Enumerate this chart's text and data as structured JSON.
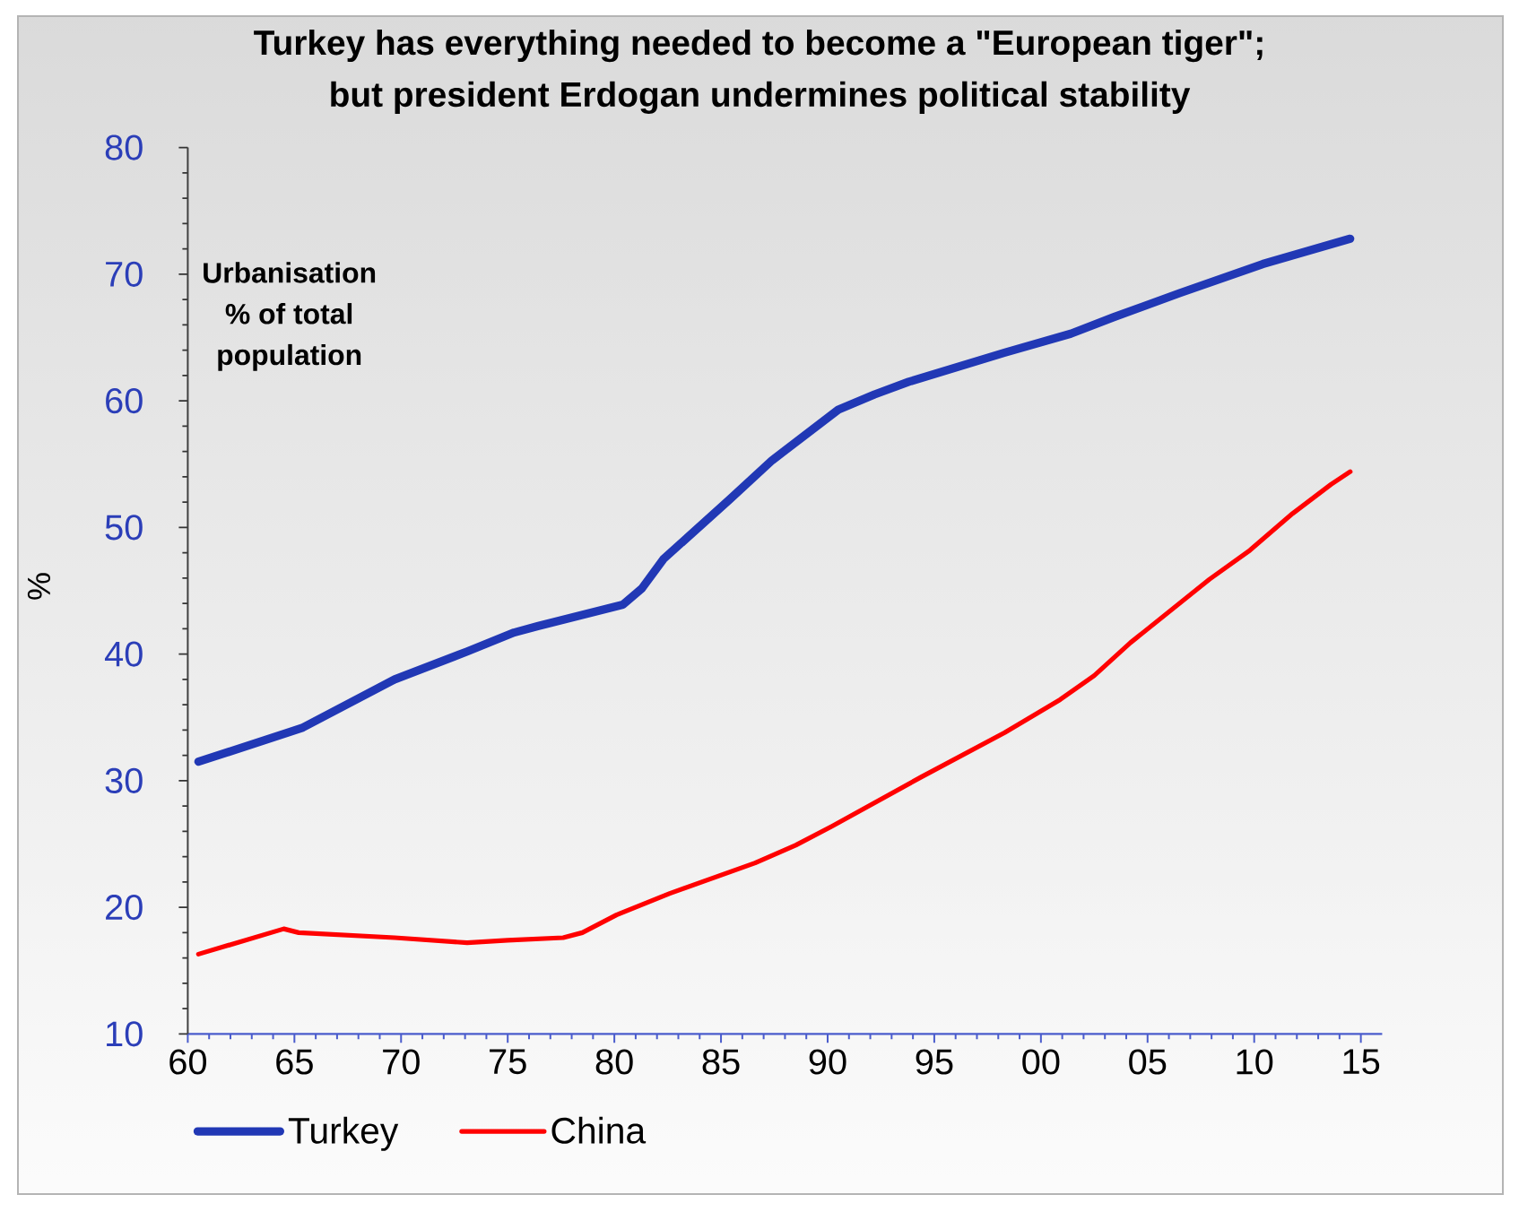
{
  "chart_data": {
    "type": "line",
    "title": "Turkey has everything needed to become a \"European tiger\"; but president Erdogan undermines political stability",
    "ylabel": "%",
    "annotations": [
      "Urbanisation % of total population"
    ],
    "xlim": [
      1960,
      2016
    ],
    "xticks": [
      {
        "value": 1960,
        "label": "60"
      },
      {
        "value": 1965,
        "label": "65"
      },
      {
        "value": 1970,
        "label": "70"
      },
      {
        "value": 1975,
        "label": "75"
      },
      {
        "value": 1980,
        "label": "80"
      },
      {
        "value": 1985,
        "label": "85"
      },
      {
        "value": 1990,
        "label": "90"
      },
      {
        "value": 1995,
        "label": "95"
      },
      {
        "value": 2000,
        "label": "00"
      },
      {
        "value": 2005,
        "label": "05"
      },
      {
        "value": 2010,
        "label": "10"
      },
      {
        "value": 2015,
        "label": "15"
      }
    ],
    "ylim": [
      10,
      80
    ],
    "yticks": [
      10,
      20,
      30,
      40,
      50,
      60,
      70,
      80
    ],
    "legend": "bottom",
    "series": [
      {
        "name": "Turkey",
        "color": "#2138b5",
        "x": [
          1960.5,
          1964.7,
          1965.4,
          1969.7,
          1973.1,
          1975.3,
          1976.4,
          1980.4,
          1981.3,
          1982.3,
          1985.4,
          1987.4,
          1990.5,
          1992.2,
          1993.8,
          1998.3,
          2001.4,
          2003.4,
          2006.5,
          2010.4,
          2014.5
        ],
        "values": [
          31.5,
          33.8,
          34.2,
          38.0,
          40.2,
          41.7,
          42.2,
          43.9,
          45.2,
          47.5,
          52.2,
          55.3,
          59.3,
          60.5,
          61.5,
          63.8,
          65.3,
          66.6,
          68.5,
          70.8,
          72.8
        ]
      },
      {
        "name": "China",
        "color": "#ff0000",
        "x": [
          1960.5,
          1964.5,
          1965.2,
          1969.7,
          1973.1,
          1975.0,
          1977.6,
          1978.5,
          1980.1,
          1982.6,
          1986.6,
          1988.5,
          1990.2,
          1994.4,
          1998.3,
          2000.9,
          2002.5,
          2004.2,
          2007.9,
          2009.8,
          2011.8,
          2013.6,
          2014.5
        ],
        "values": [
          16.3,
          18.3,
          18.0,
          17.6,
          17.2,
          17.4,
          17.6,
          18.0,
          19.4,
          21.1,
          23.5,
          24.9,
          26.4,
          30.3,
          33.8,
          36.4,
          38.3,
          40.9,
          45.9,
          48.2,
          51.1,
          53.4,
          54.4
        ]
      }
    ]
  }
}
